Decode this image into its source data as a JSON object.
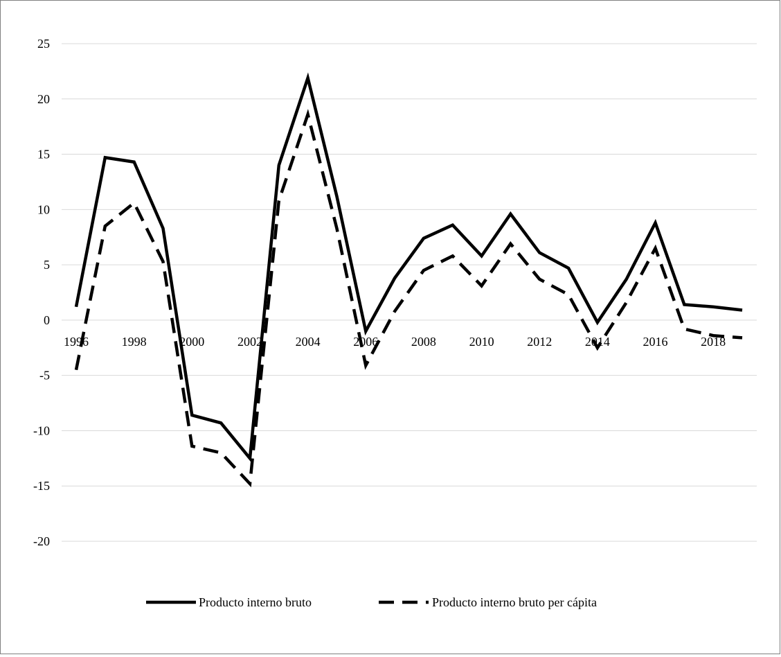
{
  "chart_data": {
    "type": "line",
    "title": "",
    "xlabel": "",
    "ylabel": "",
    "x": [
      1996,
      1997,
      1998,
      1999,
      2000,
      2001,
      2002,
      2003,
      2004,
      2005,
      2006,
      2007,
      2008,
      2009,
      2010,
      2011,
      2012,
      2013,
      2014,
      2015,
      2016,
      2017,
      2018,
      2019
    ],
    "x_tick_labels": [
      "1996",
      "1998",
      "2000",
      "2002",
      "2004",
      "2006",
      "2008",
      "2010",
      "2012",
      "2014",
      "2016",
      "2018"
    ],
    "y_tick_labels": [
      "25",
      "20",
      "15",
      "10",
      "5",
      "0",
      "-5",
      "-10",
      "-15",
      "-20"
    ],
    "ylim": [
      -20,
      25
    ],
    "grid": true,
    "legend_position": "bottom",
    "series": [
      {
        "name": "Producto interno bruto",
        "style": "solid",
        "color": "#000000",
        "values": [
          1.2,
          14.7,
          14.3,
          8.3,
          -8.6,
          -9.3,
          -12.5,
          14.0,
          21.9,
          11.2,
          -1.0,
          3.8,
          7.4,
          8.6,
          5.8,
          9.6,
          6.1,
          4.7,
          -0.2,
          3.7,
          8.8,
          1.4,
          1.2,
          0.9
        ]
      },
      {
        "name": "Producto interno bruto per cápita",
        "style": "dashed",
        "color": "#000000",
        "values": [
          -4.5,
          8.5,
          10.6,
          5.3,
          -11.4,
          -12.0,
          -14.8,
          10.8,
          18.6,
          8.3,
          -4.1,
          0.8,
          4.5,
          5.8,
          3.1,
          6.9,
          3.7,
          2.3,
          -2.5,
          1.6,
          6.5,
          -0.8,
          -1.4,
          -1.6
        ]
      }
    ]
  }
}
